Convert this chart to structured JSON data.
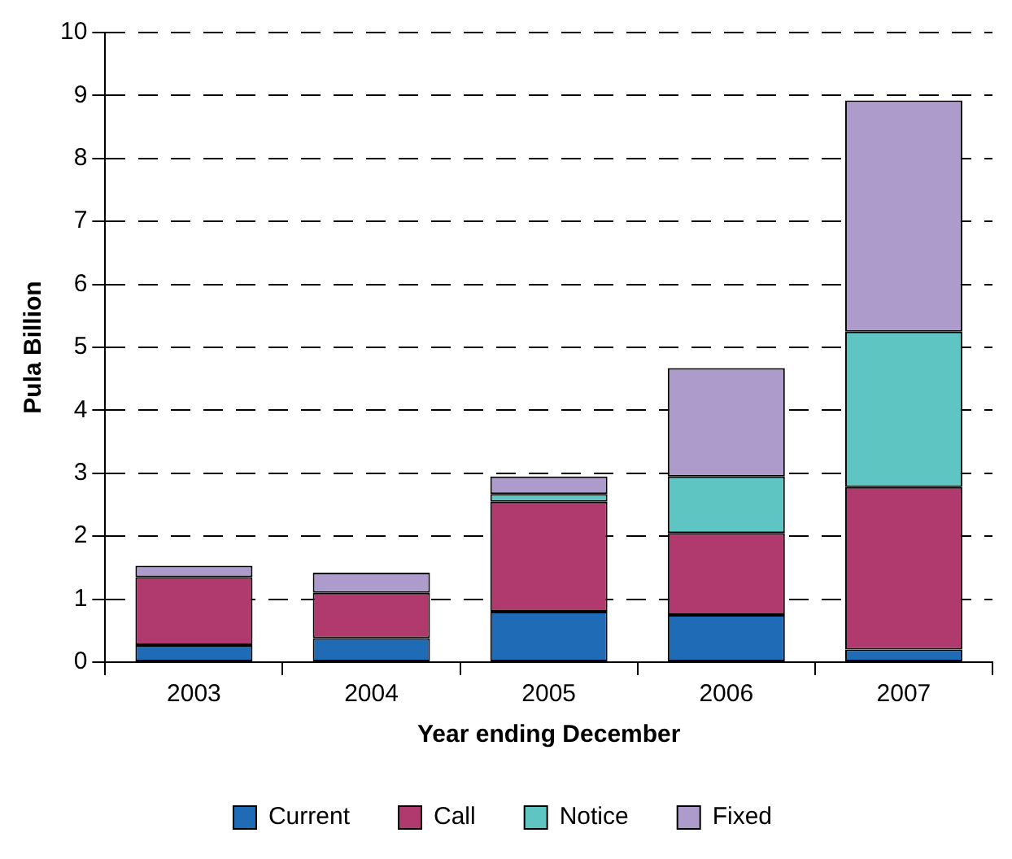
{
  "chart_data": {
    "type": "bar",
    "xlabel": "Year ending December",
    "ylabel": "Pula Billion",
    "categories": [
      "2003",
      "2004",
      "2005",
      "2006",
      "2007"
    ],
    "stacked": true,
    "series": [
      {
        "name": "Current",
        "color": "#1f6bb5",
        "values": [
          0.27,
          0.38,
          0.8,
          0.75,
          0.2
        ]
      },
      {
        "name": "Call",
        "color": "#b03a6e",
        "values": [
          1.08,
          0.72,
          1.75,
          1.3,
          2.58
        ]
      },
      {
        "name": "Notice",
        "color": "#5fc5c2",
        "values": [
          0,
          0,
          0.12,
          0.9,
          2.47
        ]
      },
      {
        "name": "Fixed",
        "color": "#ad9bcb",
        "values": [
          0.18,
          0.32,
          0.28,
          1.72,
          3.67
        ]
      }
    ],
    "ylim": [
      0,
      10
    ],
    "yticks": [
      0,
      1,
      2,
      3,
      4,
      5,
      6,
      7,
      8,
      9,
      10
    ],
    "grid": "y",
    "legend": "bottom"
  }
}
